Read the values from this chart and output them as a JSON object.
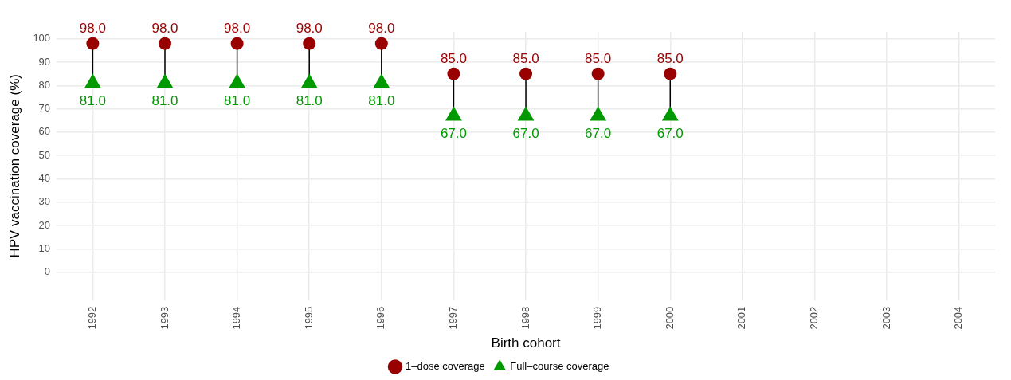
{
  "chart_data": {
    "type": "lollipop",
    "xlabel": "Birth cohort",
    "ylabel": "HPV vaccination coverage (%)",
    "categories": [
      "1992",
      "1993",
      "1994",
      "1995",
      "1996",
      "1997",
      "1998",
      "1999",
      "2000",
      "2001",
      "2002",
      "2003",
      "2004"
    ],
    "ylim": [
      -12,
      103
    ],
    "yticks": [
      0,
      10,
      20,
      30,
      40,
      50,
      60,
      70,
      80,
      90,
      100
    ],
    "grid": true,
    "legend": "bottom",
    "series": [
      {
        "name": "1–dose coverage",
        "color": "#990000",
        "marker": "circle",
        "values": [
          98,
          98,
          98,
          98,
          98,
          85,
          85,
          85,
          85,
          null,
          null,
          null,
          null
        ],
        "value_labels": [
          "98.0",
          "98.0",
          "98.0",
          "98.0",
          "98.0",
          "85.0",
          "85.0",
          "85.0",
          "85.0",
          null,
          null,
          null,
          null
        ]
      },
      {
        "name": "Full–course coverage",
        "color": "#009900",
        "marker": "triangle",
        "values": [
          81,
          81,
          81,
          81,
          81,
          67,
          67,
          67,
          67,
          null,
          null,
          null,
          null
        ],
        "value_labels": [
          "81.0",
          "81.0",
          "81.0",
          "81.0",
          "81.0",
          "67.0",
          "67.0",
          "67.0",
          "67.0",
          null,
          null,
          null,
          null
        ]
      }
    ]
  }
}
